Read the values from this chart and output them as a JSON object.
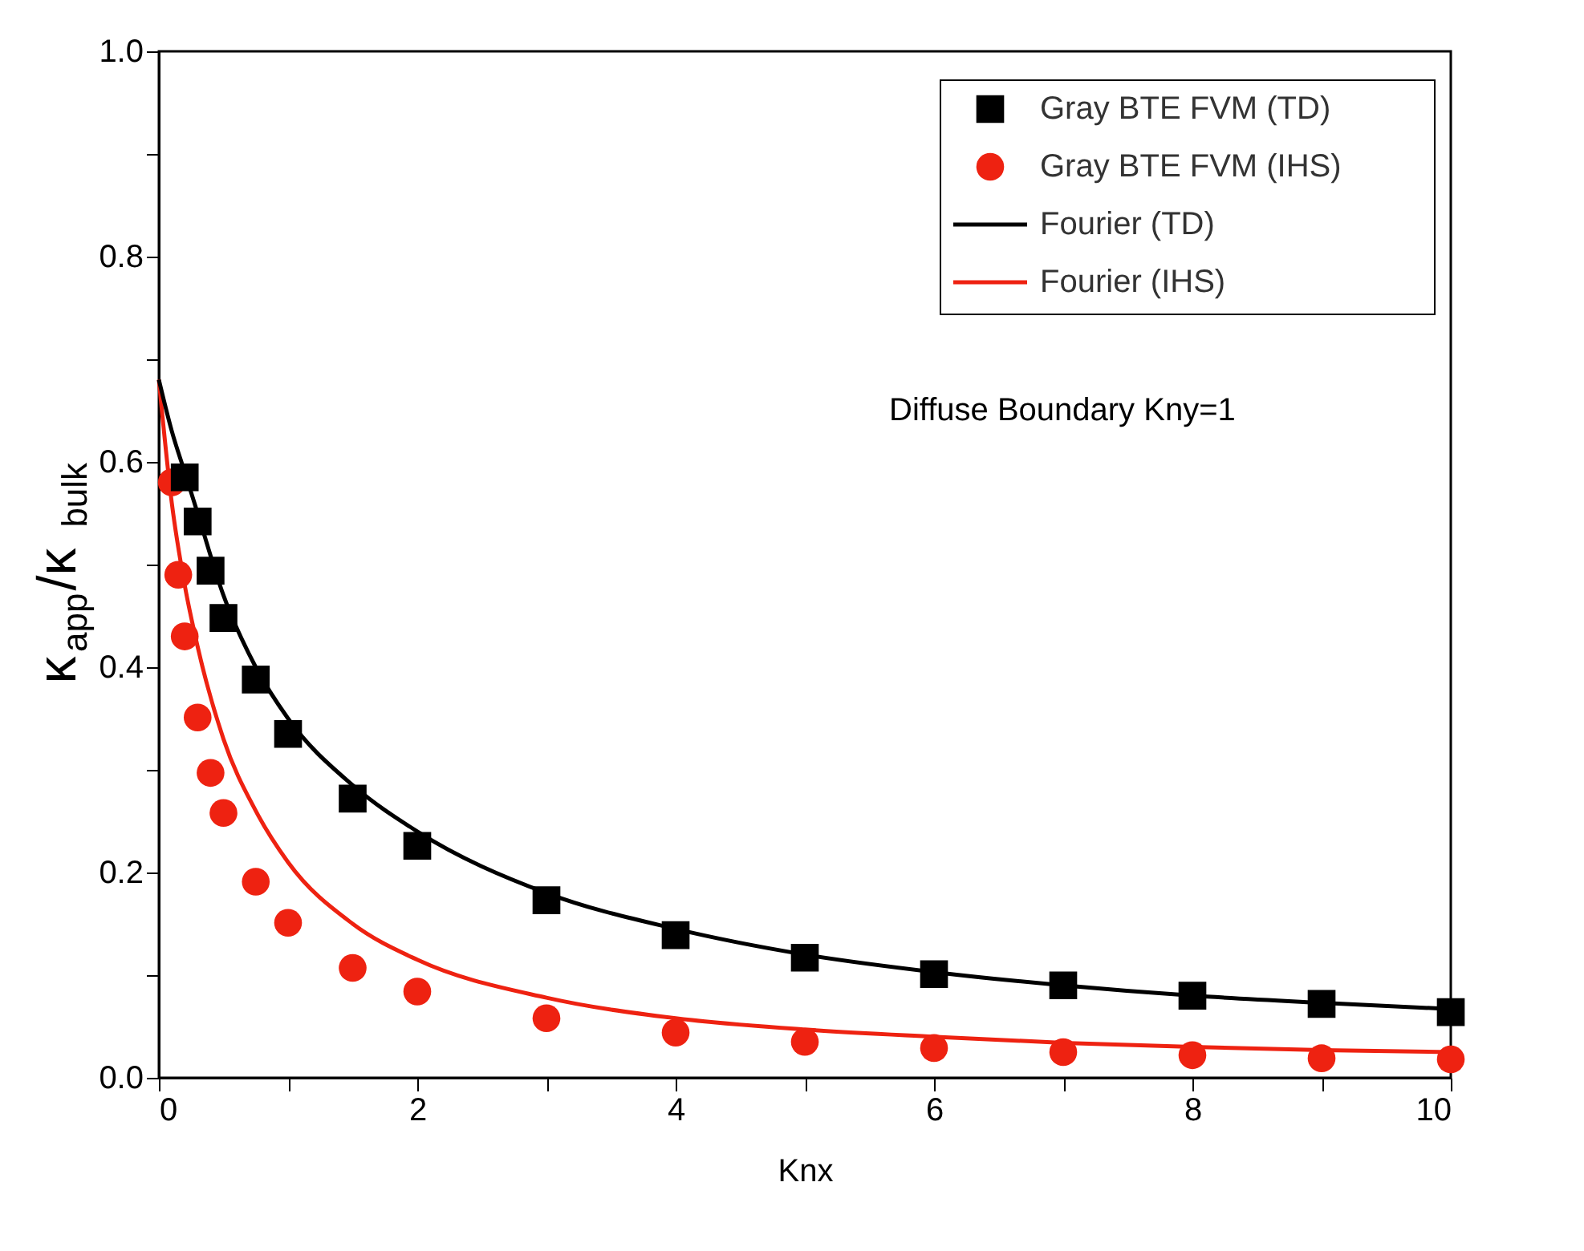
{
  "chart_data": {
    "type": "scatter",
    "xlabel": "Knx",
    "ylabel": "κ$_{app}$/κ$_{bulk}$",
    "xlim": [
      0,
      10
    ],
    "ylim": [
      0,
      1.0
    ],
    "xticks": [
      0,
      {
        "value": 1,
        "label": null
      },
      2,
      {
        "value": 3,
        "label": null
      },
      4,
      {
        "value": 5,
        "label": null
      },
      6,
      {
        "value": 7,
        "label": null
      },
      8,
      {
        "value": 9,
        "label": null
      },
      10
    ],
    "yticks": [
      {
        "value": 0,
        "label": "0.0"
      },
      {
        "value": 0.1,
        "label": null
      },
      0.2,
      {
        "value": 0.3,
        "label": null
      },
      0.4,
      {
        "value": 0.5,
        "label": null
      },
      0.6,
      {
        "value": 0.7,
        "label": null
      },
      0.8,
      {
        "value": 0.9,
        "label": null
      },
      {
        "value": 1.0,
        "label": "1.0"
      }
    ],
    "grid": false,
    "legend": "top right",
    "annotations": [
      "Diffuse Boundary Kny=1"
    ],
    "series": [
      {
        "name": "Gray BTE FVM (TD)",
        "type": "scatter",
        "marker": "square",
        "color": "#000000",
        "x": [
          0.2,
          0.3,
          0.4,
          0.5,
          0.75,
          1,
          1.5,
          2,
          3,
          4,
          5,
          6,
          7,
          8,
          9,
          10
        ],
        "values": [
          0.585,
          0.542,
          0.494,
          0.448,
          0.388,
          0.335,
          0.272,
          0.226,
          0.173,
          0.139,
          0.117,
          0.101,
          0.09,
          0.08,
          0.072,
          0.064
        ]
      },
      {
        "name": "Gray BTE FVM (IHS)",
        "type": "scatter",
        "marker": "circle",
        "color": "#ee2211",
        "x": [
          0.1,
          0.15,
          0.2,
          0.3,
          0.4,
          0.5,
          0.75,
          1,
          1.5,
          2,
          3,
          4,
          5,
          6,
          7,
          8,
          9,
          10
        ],
        "values": [
          0.58,
          0.49,
          0.43,
          0.351,
          0.297,
          0.258,
          0.191,
          0.151,
          0.107,
          0.084,
          0.058,
          0.044,
          0.035,
          0.029,
          0.025,
          0.022,
          0.019,
          0.018
        ]
      },
      {
        "name": "Fourier (TD)",
        "type": "line",
        "marker": "none",
        "color": "#000000",
        "x": [
          0,
          0.1,
          0.2,
          0.3,
          0.5,
          0.75,
          1,
          1.5,
          2,
          3,
          4,
          5,
          6,
          7,
          8,
          9,
          10
        ],
        "values": [
          0.68,
          0.63,
          0.59,
          0.55,
          0.47,
          0.4,
          0.35,
          0.285,
          0.24,
          0.18,
          0.145,
          0.12,
          0.103,
          0.09,
          0.08,
          0.073,
          0.067
        ]
      },
      {
        "name": "Fourier (IHS)",
        "type": "line",
        "marker": "none",
        "color": "#ee2211",
        "x": [
          0,
          0.1,
          0.2,
          0.3,
          0.5,
          0.75,
          1,
          1.5,
          2,
          3,
          4,
          5,
          6,
          7,
          8,
          9,
          10
        ],
        "values": [
          0.68,
          0.56,
          0.48,
          0.42,
          0.33,
          0.26,
          0.21,
          0.15,
          0.115,
          0.078,
          0.058,
          0.047,
          0.04,
          0.034,
          0.03,
          0.027,
          0.025
        ]
      }
    ]
  }
}
